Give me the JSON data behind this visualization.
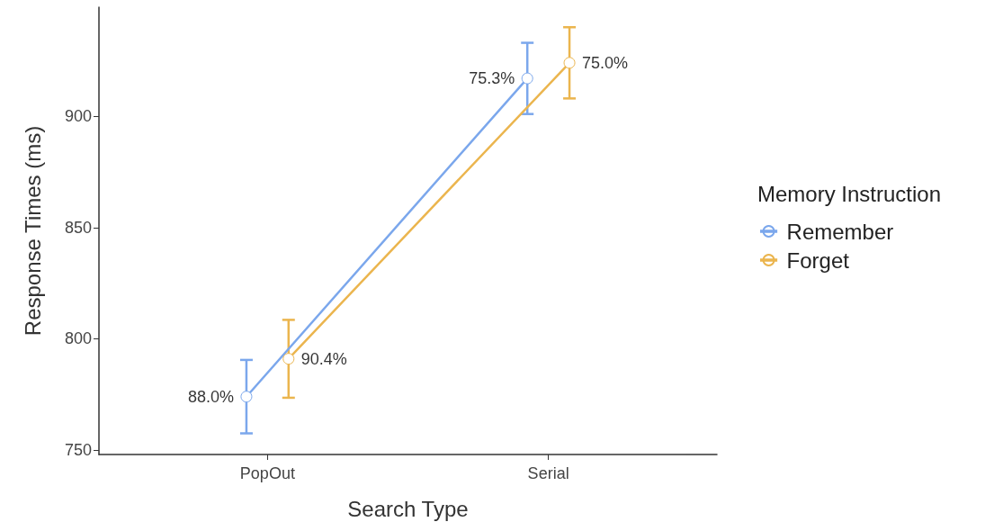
{
  "chart_data": {
    "type": "line",
    "xlabel": "Search Type",
    "ylabel": "Response Times (ms)",
    "legend_title": "Memory Instruction",
    "categories": [
      "PopOut",
      "Serial"
    ],
    "series": [
      {
        "name": "Remember",
        "color": "#7ba7ec",
        "values": [
          774,
          917
        ],
        "errors": [
          16.5,
          16
        ]
      },
      {
        "name": "Forget",
        "color": "#ebb54e",
        "values": [
          791,
          924
        ],
        "errors": [
          17.5,
          16
        ]
      }
    ],
    "annotations": [
      "88.0%",
      "75.3%",
      "90.4%",
      "75.0%"
    ],
    "ylim": [
      748,
      949
    ],
    "yticks": [
      750,
      800,
      850,
      900
    ],
    "grid": false,
    "legend": "right",
    "marker": "circle",
    "line_style": "solid"
  }
}
